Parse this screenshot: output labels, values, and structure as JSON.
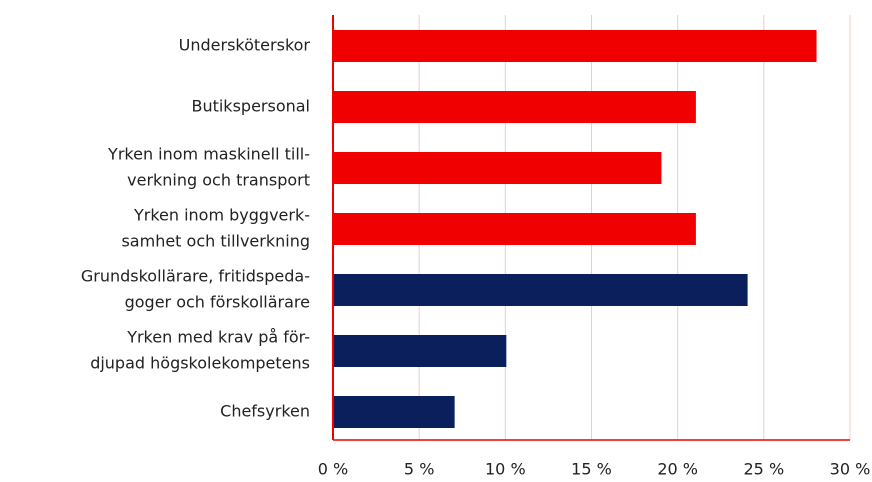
{
  "chart_data": {
    "type": "bar",
    "orientation": "horizontal",
    "categories": [
      [
        "Undersköterskor"
      ],
      [
        "Butikspersonal"
      ],
      [
        "Yrken inom maskinell till-",
        "verkning och transport"
      ],
      [
        "Yrken inom byggverk-",
        "samhet och tillverkning"
      ],
      [
        "Grundskollärare, fritidspeda-",
        "goger och förskollärare"
      ],
      [
        "Yrken med krav på för-",
        "djupad högskolekompetens"
      ],
      [
        "Chefsyrken"
      ]
    ],
    "values": [
      28,
      21,
      19,
      21,
      24,
      10,
      7
    ],
    "colors": [
      "#f00000",
      "#f00000",
      "#f00000",
      "#f00000",
      "#0b1f5c",
      "#0b1f5c",
      "#0b1f5c"
    ],
    "xlim": [
      0,
      30
    ],
    "xticks": [
      {
        "value": 0,
        "label": "0 %"
      },
      {
        "value": 5,
        "label": "5 %"
      },
      {
        "value": 10,
        "label": "10 %"
      },
      {
        "value": 15,
        "label": "15 %"
      },
      {
        "value": 20,
        "label": "20 %"
      },
      {
        "value": 25,
        "label": "25 %"
      },
      {
        "value": 30,
        "label": "30 %"
      }
    ],
    "grid": true
  }
}
